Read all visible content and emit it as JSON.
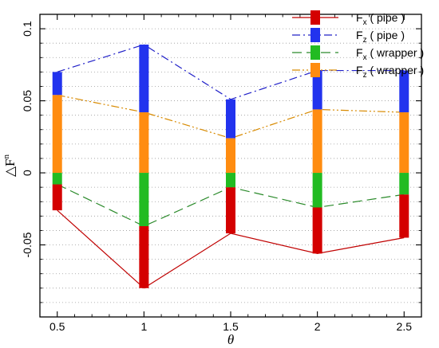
{
  "chart_data": {
    "type": "line",
    "xlabel": "θ",
    "ylabel_main": "△F",
    "ylabel_sup": "n",
    "xlim": [
      0.4,
      2.6
    ],
    "ylim": [
      -0.1,
      0.11
    ],
    "x_ticks": [
      0.5,
      1,
      1.5,
      2,
      2.5
    ],
    "x_tick_labels": [
      "0.5",
      "1",
      "1.5",
      "2",
      "2.5"
    ],
    "y_ticks": [
      -0.05,
      0,
      0.05,
      0.1
    ],
    "y_tick_labels": [
      "-0.05",
      "0",
      "0.05",
      "0.1"
    ],
    "grid": "horizontal dotted",
    "legend_position": "top-right",
    "x": [
      0.5,
      1,
      1.5,
      2,
      2.5
    ],
    "series": [
      {
        "key": "fx_pipe",
        "label_main": "F",
        "label_sub": "x",
        "label_rest": " ( pipe )",
        "color": "#c00000",
        "bar_color": "#d40000",
        "dash": "solid",
        "values": [
          -0.026,
          -0.08,
          -0.042,
          -0.056,
          -0.045
        ],
        "bar_from": [
          -0.008,
          -0.037,
          -0.01,
          -0.024,
          -0.015
        ]
      },
      {
        "key": "fz_pipe",
        "label_main": "F",
        "label_sub": "z",
        "label_rest": " ( pipe )",
        "color": "#2020c8",
        "bar_color": "#2233ee",
        "dash": "dashdot",
        "values": [
          0.07,
          0.089,
          0.051,
          0.071,
          0.071
        ],
        "bar_from": [
          0.054,
          0.042,
          0.024,
          0.044,
          0.042
        ]
      },
      {
        "key": "fx_wrapper",
        "label_main": "F",
        "label_sub": "x",
        "label_rest": " ( wrapper )",
        "color": "#2a8a2a",
        "bar_color": "#22bb22",
        "dash": "dashed",
        "values": [
          -0.008,
          -0.037,
          -0.01,
          -0.024,
          -0.015
        ],
        "bar_from": [
          0,
          0,
          0,
          0,
          0
        ]
      },
      {
        "key": "fz_wrapper",
        "label_main": "F",
        "label_sub": "z",
        "label_rest": " ( wrapper )",
        "color": "#d88a00",
        "bar_color": "#ff8c10",
        "dash": "dashdotdot",
        "values": [
          0.054,
          0.042,
          0.024,
          0.044,
          0.042
        ],
        "bar_from": [
          0,
          0,
          0,
          0,
          0
        ]
      }
    ]
  }
}
